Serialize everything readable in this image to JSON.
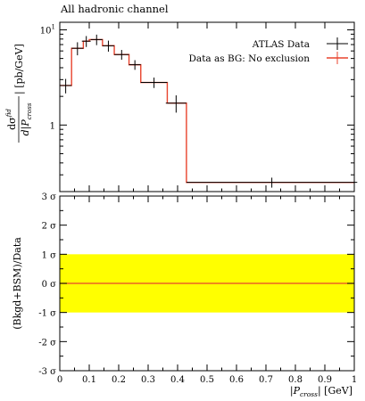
{
  "chart_data": [
    {
      "type": "line",
      "title": "All hadronic channel",
      "xlabel": "",
      "ylabel_num": "dσ",
      "ylabel_num_sup": "fid",
      "ylabel_den": "d|P",
      "ylabel_den_sub": "cross",
      "ylabel_tail": "| [pb/GeV]",
      "yscale": "log",
      "xlim": [
        0,
        1
      ],
      "ylim": [
        0.2,
        12
      ],
      "ytick_major": [
        {
          "value": 10,
          "label": "10",
          "sup": "1"
        },
        {
          "value": 1,
          "label": "1",
          "sup": ""
        }
      ],
      "legend_position": "top-right",
      "series": [
        {
          "name": "ATLAS Data",
          "kind": "errorbars",
          "color": "#000000",
          "x": [
            0.02,
            0.06,
            0.09,
            0.125,
            0.165,
            0.21,
            0.255,
            0.32,
            0.395,
            0.72
          ],
          "xerr": [
            0.02,
            0.02,
            0.015,
            0.02,
            0.02,
            0.025,
            0.02,
            0.045,
            0.035,
            0.29
          ],
          "y": [
            2.6,
            6.4,
            7.6,
            7.9,
            6.8,
            5.5,
            4.3,
            2.8,
            1.7,
            0.25
          ],
          "yerr": [
            0.45,
            1.0,
            1.0,
            1.0,
            0.9,
            0.65,
            0.5,
            0.35,
            0.35,
            0.03
          ]
        },
        {
          "name": "Data as BG: No exclusion",
          "kind": "step",
          "color": "#e8432d",
          "bin_edges": [
            0.0,
            0.04,
            0.08,
            0.1,
            0.145,
            0.185,
            0.235,
            0.275,
            0.365,
            0.43,
            1.0
          ],
          "values": [
            2.6,
            6.4,
            7.6,
            7.9,
            6.8,
            5.5,
            4.3,
            2.8,
            1.7,
            0.25
          ]
        }
      ]
    },
    {
      "type": "line",
      "xlabel_pre": "|P",
      "xlabel_sub": "cross",
      "xlabel_post": "| [GeV]",
      "ylabel": "(Bkgd+BSM)/Data",
      "xlim": [
        0,
        1
      ],
      "ylim": [
        -3,
        3
      ],
      "xticks": [
        0,
        0.1,
        0.2,
        0.3,
        0.4,
        0.5,
        0.6,
        0.7,
        0.8,
        0.9,
        1
      ],
      "xtick_labels": [
        "0",
        "0.1",
        "0.2",
        "0.3",
        "0.4",
        "0.5",
        "0.6",
        "0.7",
        "0.8",
        "0.9",
        "1"
      ],
      "yticks": [
        3,
        2,
        1,
        0,
        -1,
        -2,
        -3
      ],
      "ytick_labels": [
        "3 σ",
        "2 σ",
        "1 σ",
        "0 σ",
        "-1 σ",
        "-2 σ",
        "-3 σ"
      ],
      "band": {
        "low": -1,
        "high": 1,
        "color": "#ffff00"
      },
      "line": {
        "value": 0,
        "color": "#e8432d"
      }
    }
  ]
}
